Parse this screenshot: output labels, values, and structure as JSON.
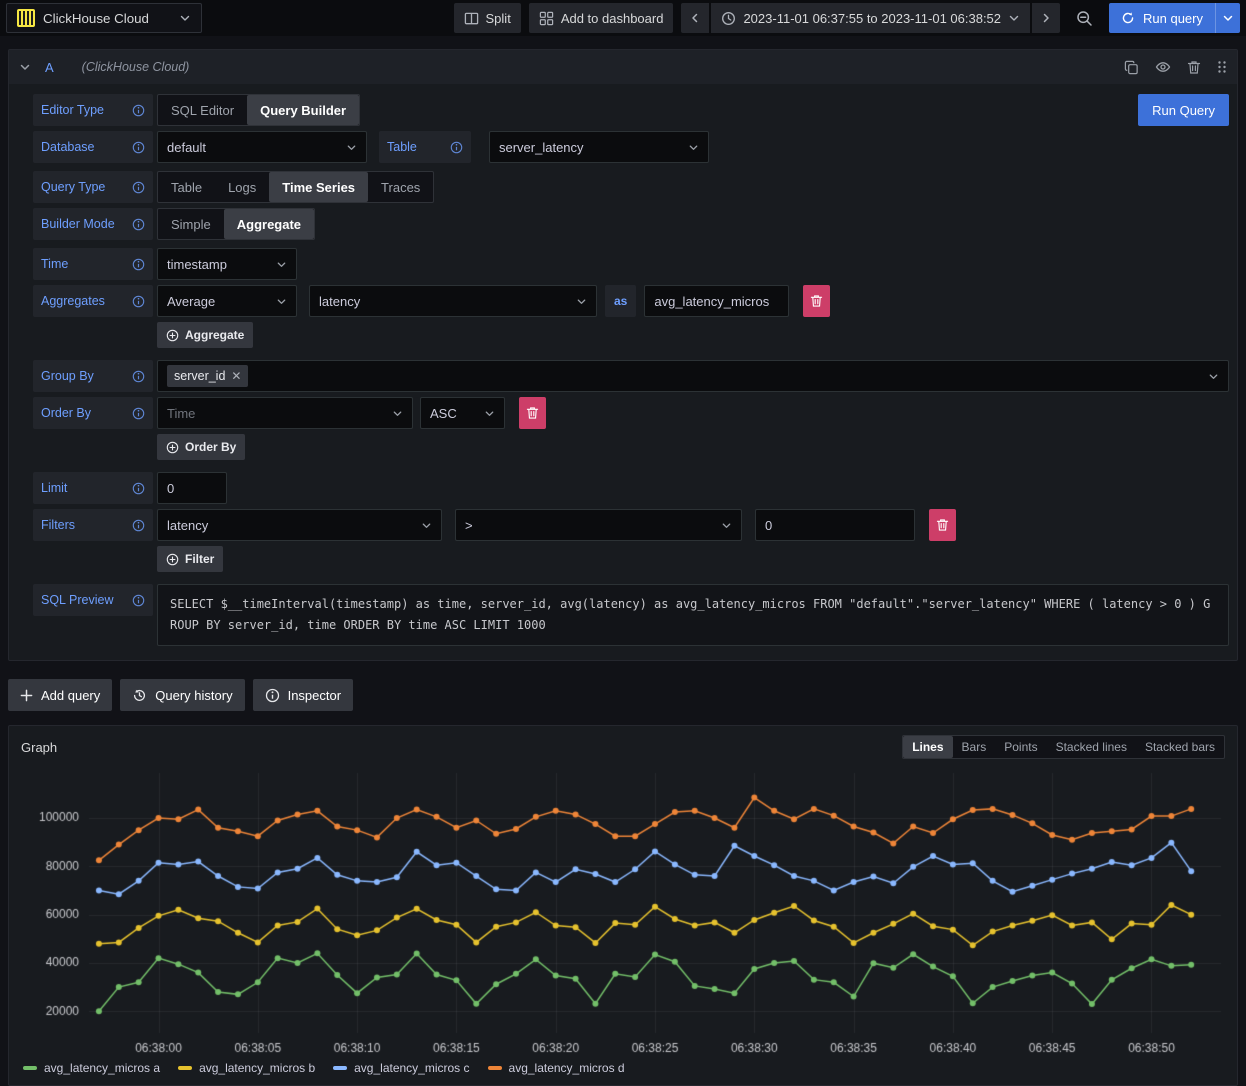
{
  "topbar": {
    "datasource_name": "ClickHouse Cloud",
    "split_label": "Split",
    "add_to_dashboard_label": "Add to dashboard",
    "time_range": "2023-11-01 06:37:55 to 2023-11-01 06:38:52",
    "run_query_label": "Run query"
  },
  "query": {
    "ref_id": "A",
    "datasource_hint": "(ClickHouse Cloud)",
    "run_query_label": "Run Query",
    "rows": {
      "editor_type": {
        "label": "Editor Type",
        "options": [
          "SQL Editor",
          "Query Builder"
        ],
        "selected": "Query Builder"
      },
      "database": {
        "label": "Database",
        "value": "default"
      },
      "table": {
        "label": "Table",
        "value": "server_latency"
      },
      "query_type": {
        "label": "Query Type",
        "options": [
          "Table",
          "Logs",
          "Time Series",
          "Traces"
        ],
        "selected": "Time Series"
      },
      "builder_mode": {
        "label": "Builder Mode",
        "options": [
          "Simple",
          "Aggregate"
        ],
        "selected": "Aggregate"
      },
      "time": {
        "label": "Time",
        "value": "timestamp"
      },
      "aggregates": {
        "label": "Aggregates",
        "function": "Average",
        "column": "latency",
        "as_label": "as",
        "alias": "avg_latency_micros",
        "add_label": "Aggregate"
      },
      "group_by": {
        "label": "Group By",
        "chip": "server_id"
      },
      "order_by": {
        "label": "Order By",
        "field": "Time",
        "direction": "ASC",
        "add_label": "Order By"
      },
      "limit": {
        "label": "Limit",
        "value": "0"
      },
      "filters": {
        "label": "Filters",
        "field": "latency",
        "operator": ">",
        "value": "0",
        "add_label": "Filter"
      },
      "sql_preview": {
        "label": "SQL Preview",
        "sql": "SELECT $__timeInterval(timestamp) as time, server_id, avg(latency) as avg_latency_micros FROM \"default\".\"server_latency\" WHERE ( latency > 0 ) GROUP BY server_id, time ORDER BY time ASC LIMIT 1000"
      }
    }
  },
  "actions": {
    "add_query": "Add query",
    "query_history": "Query history",
    "inspector": "Inspector"
  },
  "graph": {
    "title": "Graph",
    "modes": [
      "Lines",
      "Bars",
      "Points",
      "Stacked lines",
      "Stacked bars"
    ],
    "selected_mode": "Lines"
  },
  "colors": {
    "accent_blue": "#3d71d9",
    "label_blue": "#6e9fff",
    "danger_red": "#cd3e68",
    "series_green": "#73bf69",
    "series_yellow": "#e6c22e",
    "series_light_blue": "#8ab8ff",
    "series_orange": "#ee8538"
  },
  "icons": {
    "datasource_logo": "clickhouse-logo",
    "split": "split-panes",
    "add_to_dashboard": "apps-grid",
    "time_picker": "clock",
    "zoom_out": "magnifier-minus",
    "run_query": "refresh",
    "query_history": "history",
    "inspector": "info-circle",
    "row_help": "info-circle"
  },
  "chart_data": {
    "type": "line",
    "title": "Graph",
    "xlabel": "",
    "ylabel": "",
    "legend_position": "bottom-left",
    "grid": true,
    "marker": "circle",
    "ylim": [
      11000,
      117000
    ],
    "y_ticks": [
      20000,
      40000,
      60000,
      80000,
      100000
    ],
    "x_ticks": [
      "06:38:00",
      "06:38:05",
      "06:38:10",
      "06:38:15",
      "06:38:20",
      "06:38:25",
      "06:38:30",
      "06:38:35",
      "06:38:40",
      "06:38:45",
      "06:38:50"
    ],
    "x_times": [
      "06:37:57",
      "06:37:58",
      "06:37:59",
      "06:38:00",
      "06:38:01",
      "06:38:02",
      "06:38:03",
      "06:38:04",
      "06:38:05",
      "06:38:06",
      "06:38:07",
      "06:38:08",
      "06:38:09",
      "06:38:10",
      "06:38:11",
      "06:38:12",
      "06:38:13",
      "06:38:14",
      "06:38:15",
      "06:38:16",
      "06:38:17",
      "06:38:18",
      "06:38:19",
      "06:38:20",
      "06:38:21",
      "06:38:22",
      "06:38:23",
      "06:38:24",
      "06:38:25",
      "06:38:26",
      "06:38:27",
      "06:38:28",
      "06:38:29",
      "06:38:30",
      "06:38:31",
      "06:38:32",
      "06:38:33",
      "06:38:34",
      "06:38:35",
      "06:38:36",
      "06:38:37",
      "06:38:38",
      "06:38:39",
      "06:38:40",
      "06:38:41",
      "06:38:42",
      "06:38:43",
      "06:38:44",
      "06:38:45",
      "06:38:46",
      "06:38:47",
      "06:38:48",
      "06:38:49",
      "06:38:50",
      "06:38:51",
      "06:38:52"
    ],
    "series": [
      {
        "name": "avg_latency_micros a",
        "color": "#73bf69",
        "values": [
          20000,
          30000,
          32000,
          42000,
          39500,
          36000,
          28000,
          27000,
          32000,
          42000,
          40000,
          44000,
          35000,
          27500,
          34000,
          35200,
          43900,
          35200,
          32800,
          23100,
          31200,
          35500,
          41500,
          34800,
          33500,
          23100,
          35500,
          34200,
          43500,
          40500,
          30500,
          29200,
          27500,
          37500,
          40000,
          40800,
          33100,
          32000,
          26100,
          39900,
          38000,
          43600,
          38500,
          34500,
          23300,
          30000,
          32500,
          34800,
          36000,
          31500,
          23000,
          33000,
          37800,
          41500,
          38800,
          39300
        ]
      },
      {
        "name": "avg_latency_micros b",
        "color": "#e6c22e",
        "values": [
          48000,
          48500,
          54500,
          59500,
          62000,
          58500,
          57300,
          52500,
          48500,
          55500,
          57000,
          62500,
          54000,
          51500,
          53500,
          58800,
          62400,
          57800,
          55800,
          48500,
          55000,
          56800,
          61000,
          55500,
          54800,
          48300,
          56500,
          55800,
          63300,
          58200,
          55500,
          56800,
          52500,
          57800,
          60800,
          63600,
          57600,
          55000,
          48300,
          52500,
          56200,
          60400,
          55200,
          53800,
          47300,
          53000,
          55500,
          57500,
          59800,
          55500,
          56800,
          49800,
          56300,
          55800,
          64000,
          60000
        ]
      },
      {
        "name": "avg_latency_micros c",
        "color": "#8ab8ff",
        "values": [
          70000,
          68500,
          74000,
          81500,
          80800,
          82000,
          76000,
          71500,
          70800,
          77500,
          79000,
          83500,
          76500,
          74000,
          73500,
          75500,
          86000,
          80500,
          81500,
          76000,
          70500,
          70000,
          77500,
          73500,
          78800,
          76800,
          73500,
          78800,
          86200,
          80800,
          76500,
          76000,
          88500,
          84300,
          80500,
          76000,
          74000,
          70000,
          73500,
          75800,
          73000,
          79800,
          84300,
          80800,
          81300,
          74000,
          69500,
          72000,
          74500,
          77000,
          79000,
          81800,
          80500,
          83500,
          89800,
          78000
        ]
      },
      {
        "name": "avg_latency_micros d",
        "color": "#ee8538",
        "values": [
          82500,
          89000,
          95000,
          100000,
          99500,
          103500,
          96000,
          94500,
          92500,
          99000,
          101500,
          103000,
          96500,
          95000,
          92000,
          100000,
          103500,
          100500,
          96000,
          99000,
          93500,
          95500,
          100500,
          103000,
          101500,
          97500,
          92500,
          92500,
          97500,
          102500,
          103000,
          100000,
          96000,
          108500,
          103000,
          99500,
          103800,
          101000,
          96500,
          94000,
          89500,
          96500,
          93800,
          99500,
          103300,
          103800,
          101300,
          97800,
          93000,
          91000,
          93800,
          94500,
          95300,
          100800,
          100800,
          103800
        ]
      }
    ]
  }
}
